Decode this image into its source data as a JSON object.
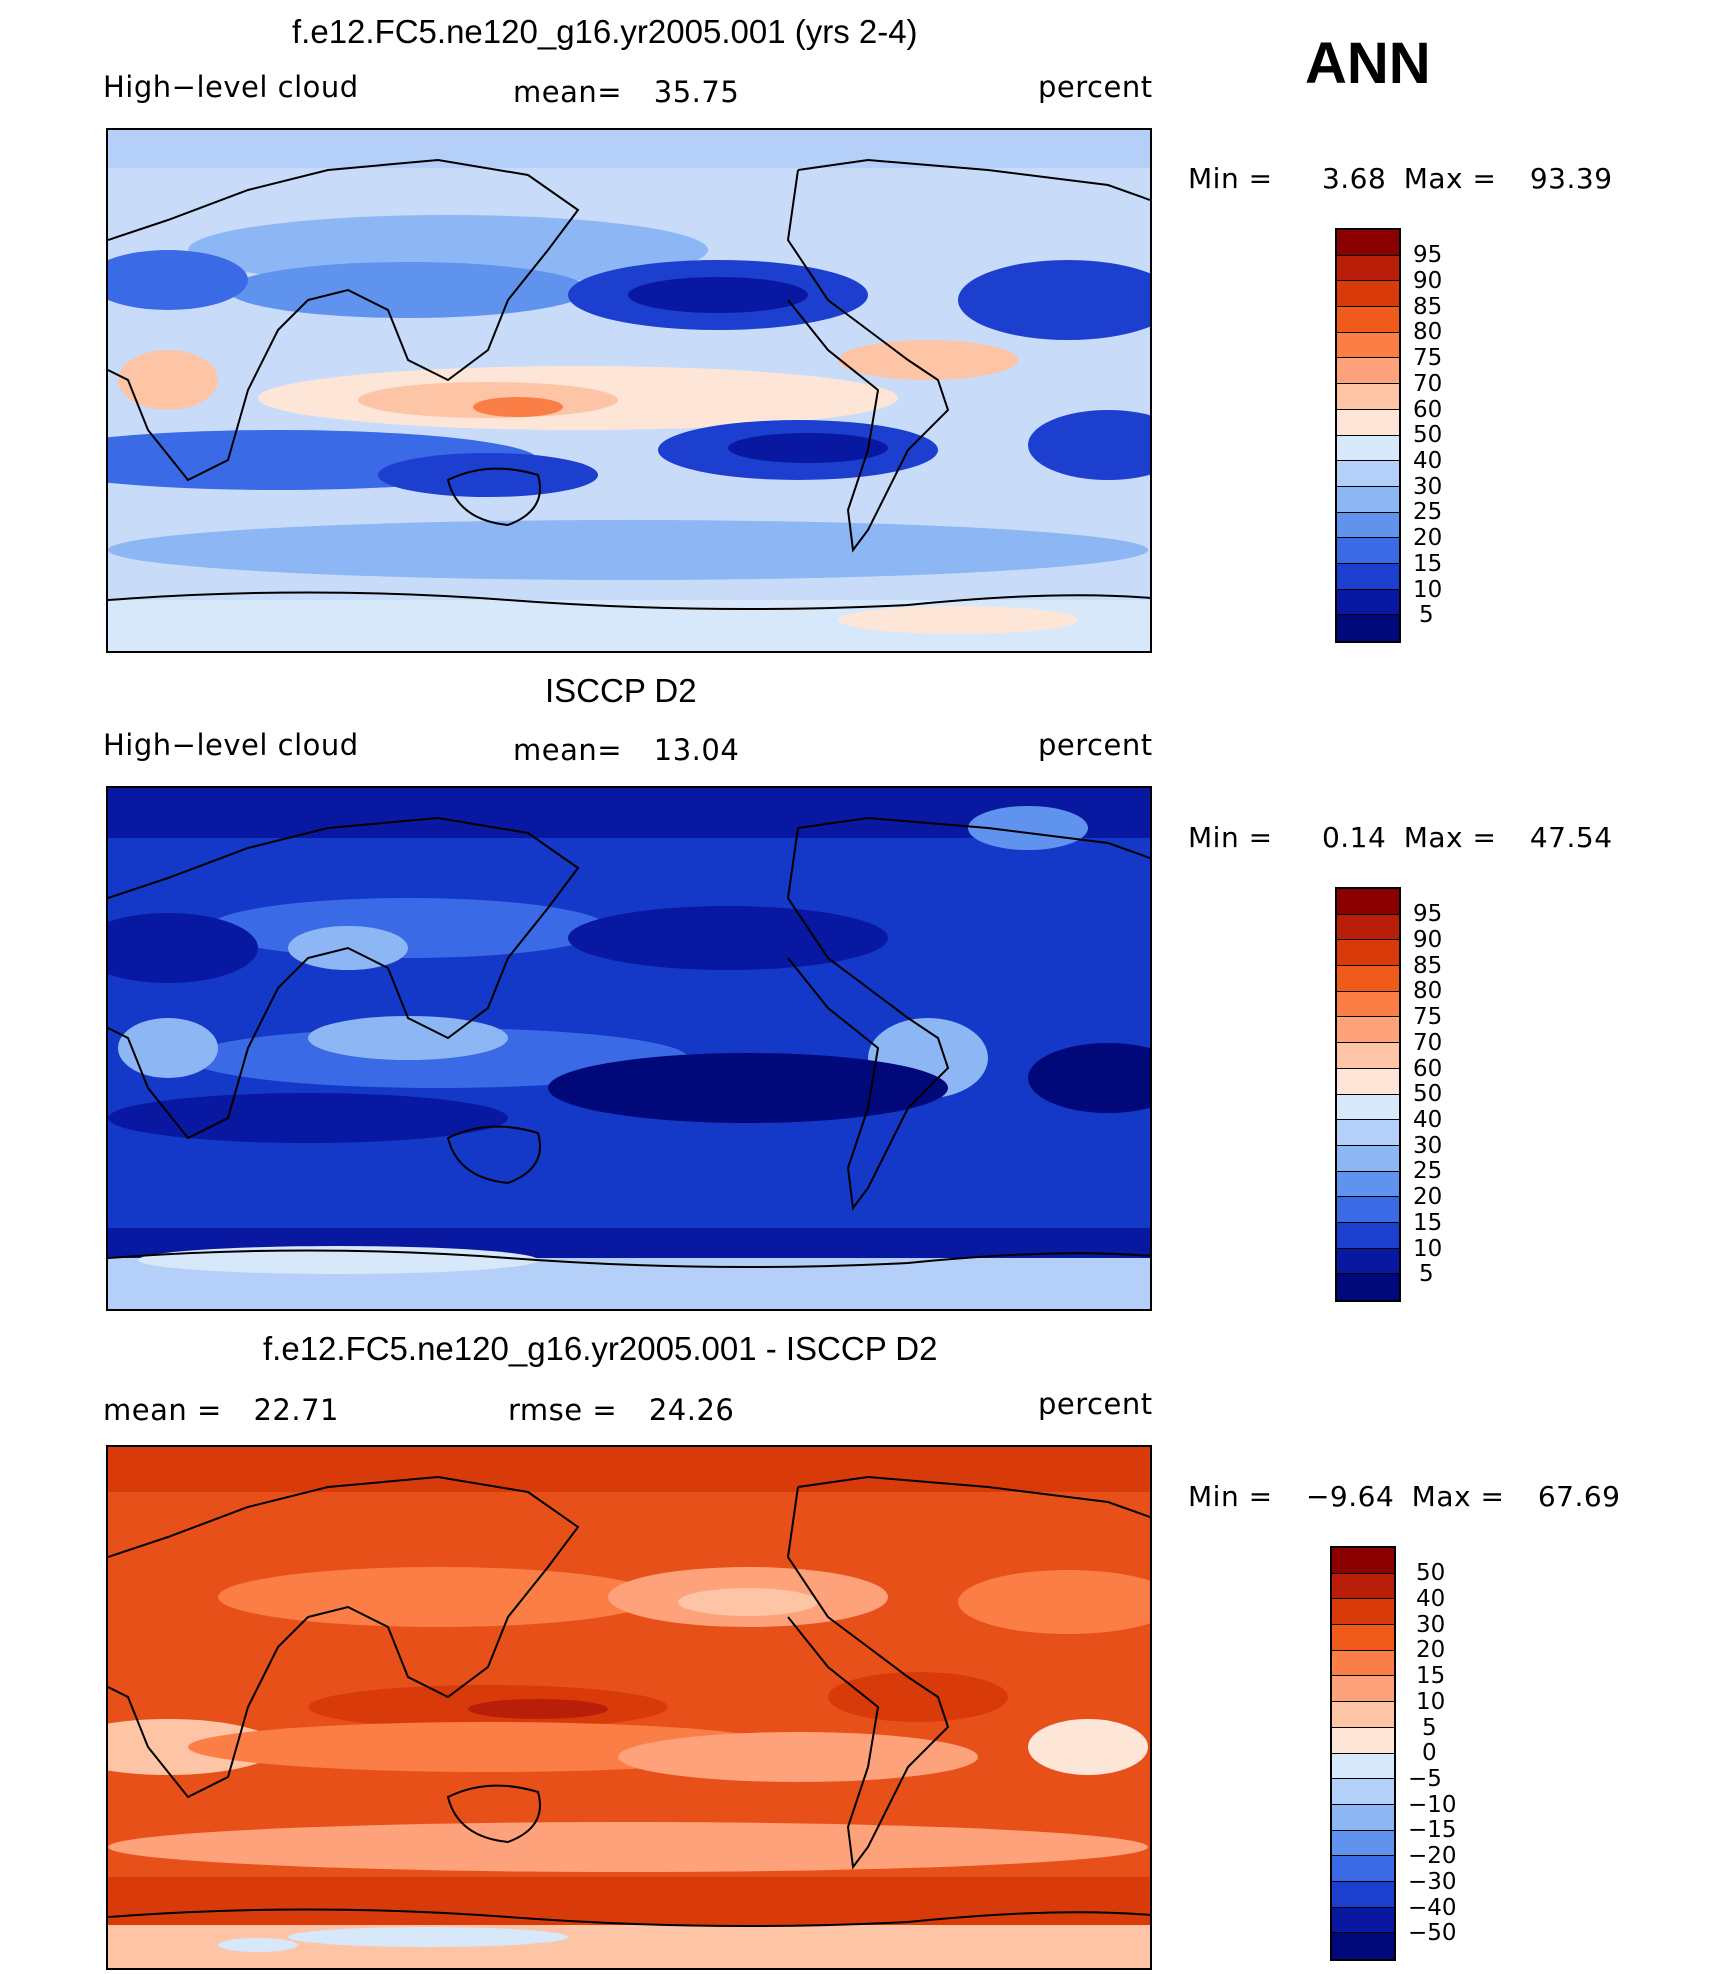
{
  "header": {
    "season": "ANN"
  },
  "panels": [
    {
      "title": "f.e12.FC5.ne120_g16.yr2005.001 (yrs 2-4)",
      "left": "High−level cloud",
      "center_label": "mean=",
      "center_value": "35.75",
      "units": "percent",
      "min_label": "Min =",
      "min_value": "3.68",
      "max_label": "Max =",
      "max_value": "93.39",
      "legend": [
        "95",
        "90",
        "85",
        "80",
        "75",
        "70",
        "60",
        "50",
        "40",
        "30",
        "25",
        "20",
        "15",
        "10",
        "5"
      ]
    },
    {
      "title": "ISCCP D2",
      "left": "High−level cloud",
      "center_label": "mean=",
      "center_value": "13.04",
      "units": "percent",
      "min_label": "Min =",
      "min_value": "0.14",
      "max_label": "Max =",
      "max_value": "47.54",
      "legend": [
        "95",
        "90",
        "85",
        "80",
        "75",
        "70",
        "60",
        "50",
        "40",
        "30",
        "25",
        "20",
        "15",
        "10",
        "5"
      ]
    },
    {
      "title": "f.e12.FC5.ne120_g16.yr2005.001 - ISCCP D2",
      "left_label": "mean =",
      "left_value": "22.71",
      "center_label": "rmse =",
      "center_value": "24.26",
      "units": "percent",
      "min_label": "Min =",
      "min_value": "−9.64",
      "max_label": "Max =",
      "max_value": "67.69",
      "legend": [
        "50",
        "40",
        "30",
        "20",
        "15",
        "10",
        "5",
        "0",
        "−5",
        "−10",
        "−15",
        "−20",
        "−30",
        "−40",
        "−50"
      ]
    }
  ],
  "colors": {
    "scale": [
      "#8b0000",
      "#b81e08",
      "#d93a0a",
      "#f05a1a",
      "#fa7e45",
      "#fda27a",
      "#fdc4a6",
      "#fde6d8",
      "#d8e8fb",
      "#b4d0f8",
      "#8db6f4",
      "#5f93ee",
      "#3a6ae6",
      "#1c3fd0",
      "#0818a0",
      "#00087a"
    ],
    "map1": {
      "base": "#c8dcfa"
    },
    "map2": {
      "base": "#1438c8"
    },
    "map3": {
      "base": "#e8501a"
    }
  }
}
